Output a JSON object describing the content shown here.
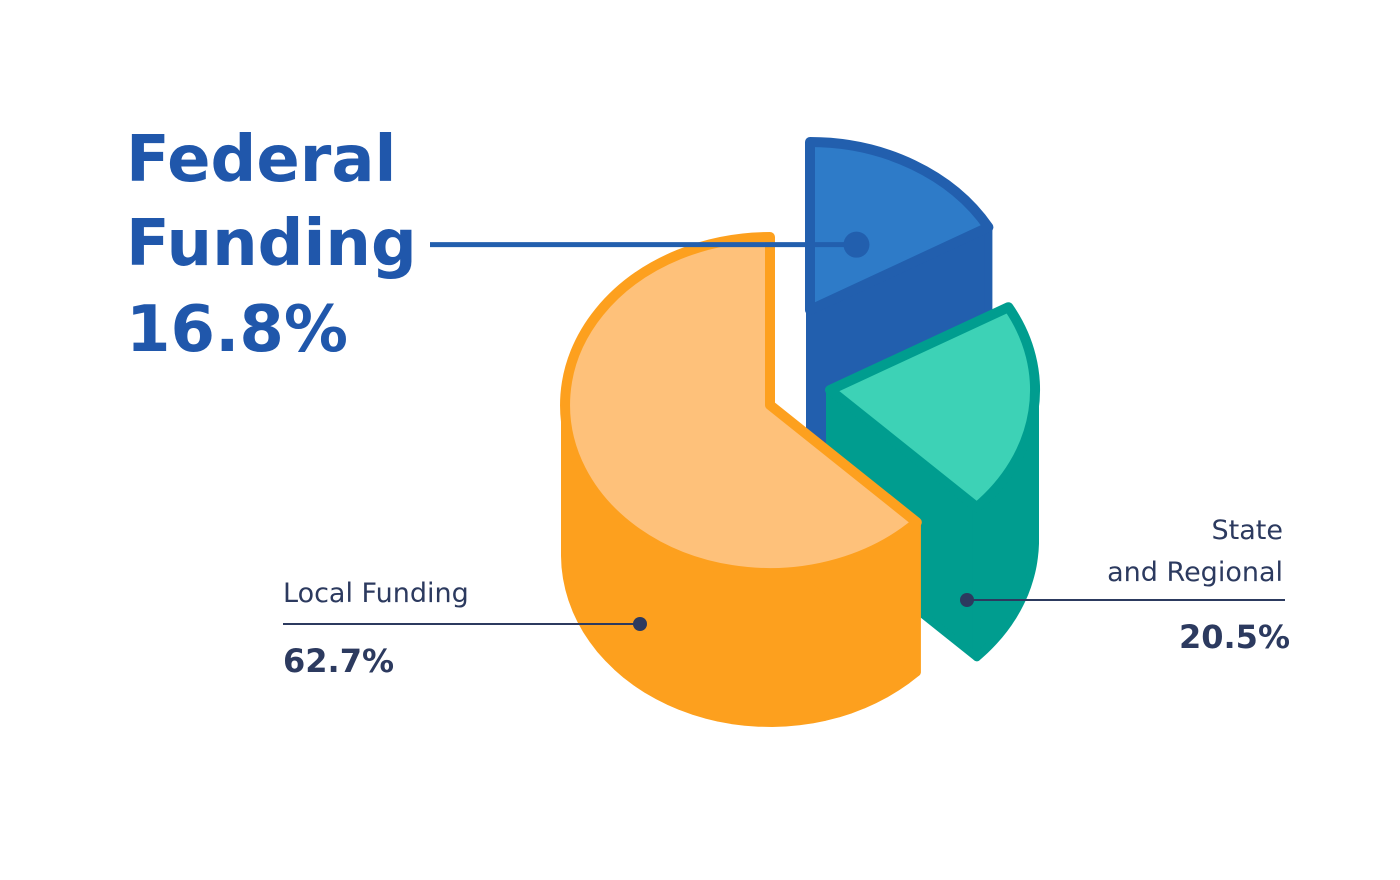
{
  "chart_data": {
    "type": "pie",
    "categories": [
      "Federal Funding",
      "State and Regional",
      "Local Funding"
    ],
    "values": [
      16.8,
      20.5,
      62.7
    ],
    "unit": "%",
    "slices": [
      {
        "name_lines": [
          "Federal",
          "Funding"
        ],
        "value_label": "16.8%",
        "value": 16.8,
        "color": "#2e7bc8",
        "side_color": "#225fae",
        "stroke_color": "#225fae"
      },
      {
        "name_lines": [
          "State",
          "and Regional"
        ],
        "value_label": "20.5%",
        "value": 20.5,
        "color": "#3dd2b6",
        "side_color": "#009d8f",
        "stroke_color": "#009d8f"
      },
      {
        "name_lines": [
          "Local Funding"
        ],
        "value_label": "62.7%",
        "value": 62.7,
        "color": "#fec17a",
        "side_color": "#fda01e",
        "stroke_color": "#fda01e"
      }
    ],
    "style": "3d-exploded",
    "leader_color_federal": "#225fae",
    "leader_color_other": "#2c3a5f"
  }
}
